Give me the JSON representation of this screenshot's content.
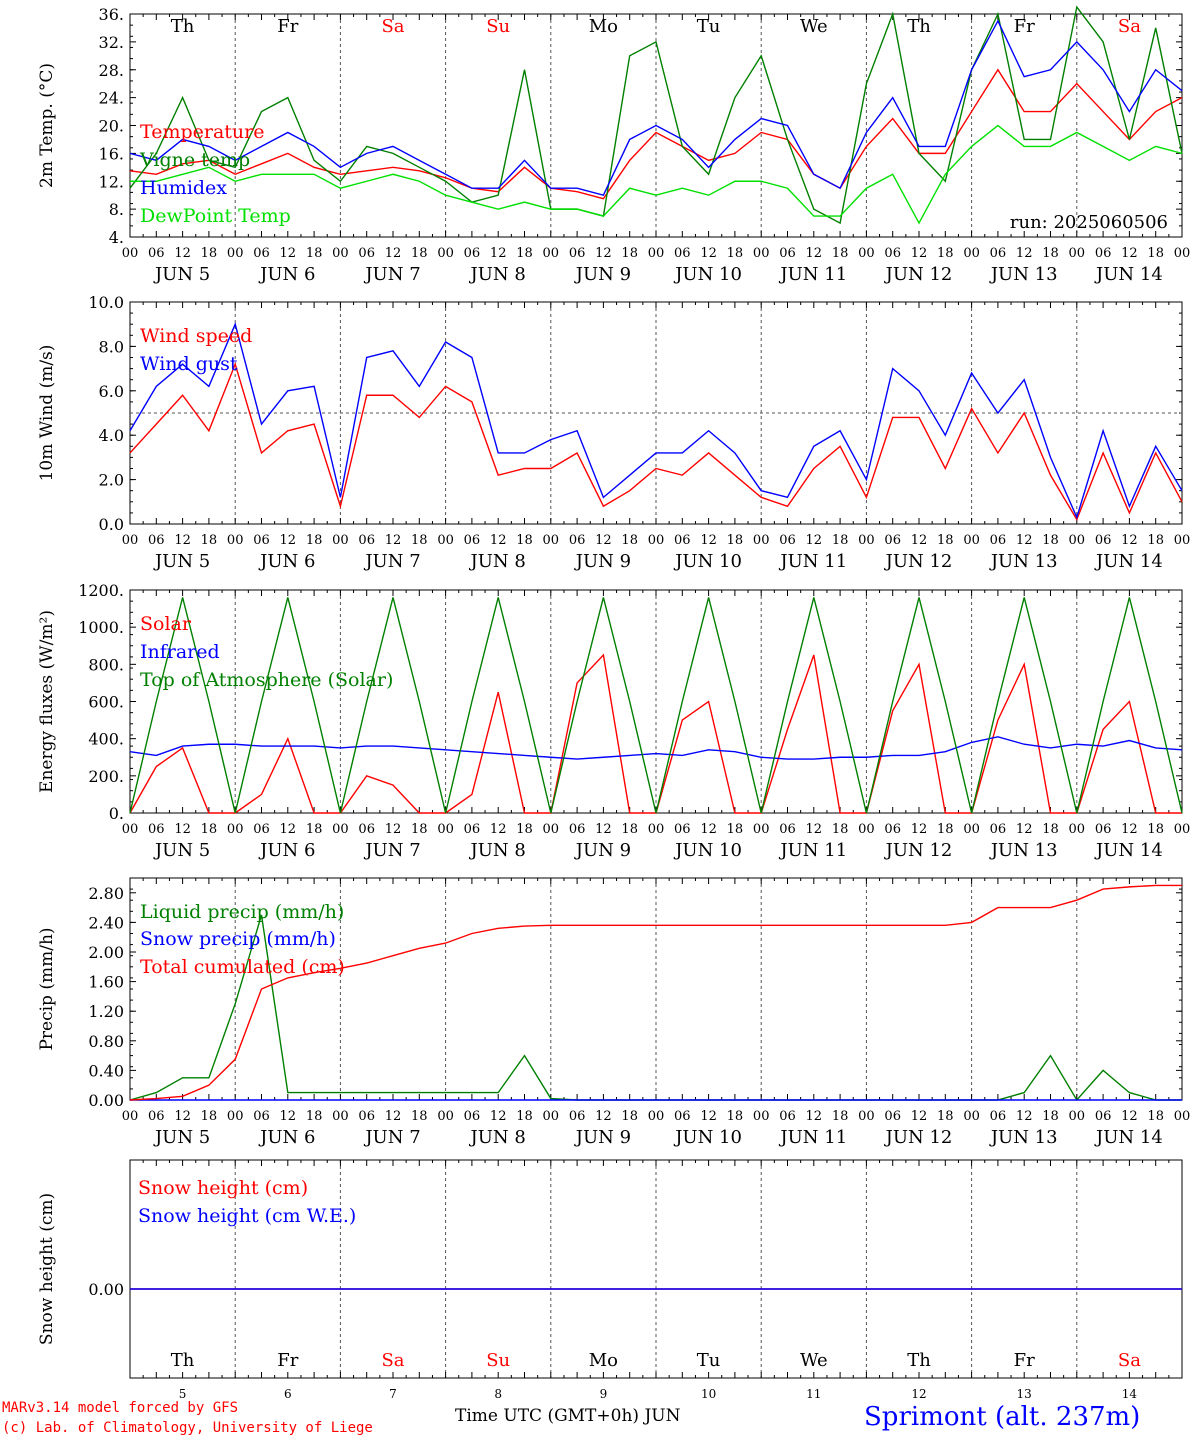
{
  "meta": {
    "run": "run: 2025060506",
    "footer_model": "MARv3.14 model forced by GFS",
    "footer_lab": "(c) Lab. of Climatology, University of Liege",
    "footer_axis": "Time UTC (GMT+0h) JUN",
    "footer_station": "Sprimont (alt. 237m)"
  },
  "colors": {
    "red": "#ff0000",
    "green": "#008000",
    "blue": "#0000ff",
    "lime": "#00e000",
    "grid": "#555555"
  },
  "chart_data": [
    {
      "type": "line",
      "ylabel": "2m Temp. (°C)",
      "ylim": [
        4,
        36
      ],
      "yticks": [
        "4.",
        "8.",
        "12.",
        "16.",
        "20.",
        "24.",
        "28.",
        "32.",
        "36."
      ],
      "day_names": [
        "Th",
        "Fr",
        "Sa",
        "Su",
        "Mo",
        "Tu",
        "We",
        "Th",
        "Fr",
        "Sa"
      ],
      "day_colors": [
        "#000000",
        "#000000",
        "#ff0000",
        "#ff0000",
        "#000000",
        "#000000",
        "#000000",
        "#000000",
        "#000000",
        "#ff0000"
      ],
      "x_hours": [
        0,
        6,
        12,
        18,
        24,
        30,
        36,
        42,
        48,
        54,
        60,
        66,
        72,
        78,
        84,
        90,
        96,
        102,
        108,
        114,
        120,
        126,
        132,
        138,
        144,
        150,
        156,
        162,
        168,
        174,
        180,
        186,
        192,
        198,
        204,
        210,
        216,
        222,
        228,
        234,
        240
      ],
      "series": [
        {
          "name": "Temperature",
          "color": "#ff0000",
          "values": [
            13.5,
            13,
            14.5,
            15,
            13,
            14.5,
            16,
            14,
            13,
            13.5,
            14,
            13.5,
            12.5,
            11,
            10.5,
            14,
            11,
            10.5,
            9.5,
            15,
            19,
            17,
            15,
            16,
            19,
            18,
            13,
            11,
            17,
            21,
            16,
            16,
            22,
            28,
            22,
            22,
            26,
            22,
            18,
            22,
            24
          ]
        },
        {
          "name": "Vigne temp",
          "color": "#008000",
          "values": [
            11,
            16,
            24,
            15,
            14,
            22,
            24,
            15,
            12,
            17,
            16,
            14,
            12,
            9,
            10,
            28,
            8,
            8,
            7,
            30,
            32,
            17,
            13,
            24,
            30,
            18,
            8,
            6,
            26,
            36,
            16,
            12,
            28,
            36,
            18,
            18,
            37,
            32,
            18,
            34,
            16
          ]
        },
        {
          "name": "Humidex",
          "color": "#0000ff",
          "values": [
            16,
            15,
            18,
            17,
            15,
            17,
            19,
            17,
            14,
            16,
            17,
            15,
            13,
            11,
            11,
            15,
            11,
            11,
            10,
            18,
            20,
            18,
            14,
            18,
            21,
            20,
            13,
            11,
            19,
            24,
            17,
            17,
            28,
            35,
            27,
            28,
            32,
            28,
            22,
            28,
            25
          ]
        },
        {
          "name": "DewPoint Temp",
          "color": "#00e000",
          "values": [
            12,
            12,
            13,
            14,
            12,
            13,
            13,
            13,
            11,
            12,
            13,
            12,
            10,
            9,
            8,
            9,
            8,
            8,
            7,
            11,
            10,
            11,
            10,
            12,
            12,
            11,
            7,
            7,
            11,
            13,
            6,
            13,
            17,
            20,
            17,
            17,
            19,
            17,
            15,
            17,
            16
          ]
        }
      ]
    },
    {
      "type": "line",
      "ylabel": "10m Wind (m/s)",
      "ylim": [
        0,
        10
      ],
      "yticks": [
        "0.0",
        "2.0",
        "4.0",
        "6.0",
        "8.0",
        "10.0"
      ],
      "threshold": 5,
      "x_hours": [
        0,
        6,
        12,
        18,
        24,
        30,
        36,
        42,
        48,
        54,
        60,
        66,
        72,
        78,
        84,
        90,
        96,
        102,
        108,
        114,
        120,
        126,
        132,
        138,
        144,
        150,
        156,
        162,
        168,
        174,
        180,
        186,
        192,
        198,
        204,
        210,
        216,
        222,
        228,
        234,
        240
      ],
      "series": [
        {
          "name": "Wind speed",
          "color": "#ff0000",
          "values": [
            3.2,
            4.5,
            5.8,
            4.2,
            7.2,
            3.2,
            4.2,
            4.5,
            0.8,
            5.8,
            5.8,
            4.8,
            6.2,
            5.5,
            2.2,
            2.5,
            2.5,
            3.2,
            0.8,
            1.5,
            2.5,
            2.2,
            3.2,
            2.2,
            1.2,
            0.8,
            2.5,
            3.5,
            1.2,
            4.8,
            4.8,
            2.5,
            5.2,
            3.2,
            5.0,
            2.2,
            0.2,
            3.2,
            0.5,
            3.2,
            1.0
          ]
        },
        {
          "name": "Wind gust",
          "color": "#0000ff",
          "values": [
            4.2,
            6.2,
            7.2,
            6.2,
            9.0,
            4.5,
            6.0,
            6.2,
            1.2,
            7.5,
            7.8,
            6.2,
            8.2,
            7.5,
            3.2,
            3.2,
            3.8,
            4.2,
            1.2,
            2.2,
            3.2,
            3.2,
            4.2,
            3.2,
            1.5,
            1.2,
            3.5,
            4.2,
            2.0,
            7.0,
            6.0,
            4.0,
            6.8,
            5.0,
            6.5,
            3.0,
            0.3,
            4.2,
            0.8,
            3.5,
            1.5
          ]
        }
      ]
    },
    {
      "type": "line",
      "ylabel": "Energy fluxes (W/m²)",
      "ylim": [
        0,
        1200
      ],
      "yticks": [
        "0.",
        "200.",
        "400.",
        "600.",
        "800.",
        "1000.",
        "1200."
      ],
      "x_hours": [
        0,
        6,
        12,
        18,
        24,
        30,
        36,
        42,
        48,
        54,
        60,
        66,
        72,
        78,
        84,
        90,
        96,
        102,
        108,
        114,
        120,
        126,
        132,
        138,
        144,
        150,
        156,
        162,
        168,
        174,
        180,
        186,
        192,
        198,
        204,
        210,
        216,
        222,
        228,
        234,
        240
      ],
      "series": [
        {
          "name": "Solar",
          "color": "#ff0000",
          "values": [
            0,
            250,
            350,
            0,
            0,
            100,
            400,
            0,
            0,
            200,
            150,
            0,
            0,
            100,
            650,
            0,
            0,
            700,
            850,
            0,
            0,
            500,
            600,
            0,
            0,
            450,
            850,
            0,
            0,
            550,
            800,
            0,
            0,
            500,
            800,
            0,
            0,
            450,
            600,
            0,
            0
          ]
        },
        {
          "name": "Infrared",
          "color": "#0000ff",
          "values": [
            330,
            310,
            360,
            370,
            370,
            360,
            360,
            360,
            350,
            360,
            360,
            350,
            340,
            330,
            320,
            310,
            300,
            290,
            300,
            310,
            320,
            310,
            340,
            330,
            300,
            290,
            290,
            300,
            300,
            310,
            310,
            330,
            380,
            410,
            370,
            350,
            370,
            360,
            390,
            350,
            340
          ]
        },
        {
          "name": "Top of Atmosphere (Solar)",
          "color": "#008000",
          "values": [
            0,
            600,
            1160,
            600,
            0,
            600,
            1160,
            600,
            0,
            600,
            1160,
            600,
            0,
            600,
            1160,
            600,
            0,
            600,
            1160,
            600,
            0,
            600,
            1160,
            600,
            0,
            600,
            1160,
            600,
            0,
            600,
            1160,
            600,
            0,
            600,
            1160,
            600,
            0,
            600,
            1160,
            600,
            0
          ]
        }
      ]
    },
    {
      "type": "line",
      "ylabel": "Precip (mm/h)",
      "ylim": [
        0,
        3.0
      ],
      "yticks": [
        "0.00",
        "0.40",
        "0.80",
        "1.20",
        "1.60",
        "2.00",
        "2.40",
        "2.80"
      ],
      "x_hours": [
        0,
        6,
        12,
        18,
        24,
        30,
        36,
        42,
        48,
        54,
        60,
        66,
        72,
        78,
        84,
        90,
        96,
        102,
        108,
        114,
        120,
        126,
        132,
        138,
        144,
        150,
        156,
        162,
        168,
        174,
        180,
        186,
        192,
        198,
        204,
        210,
        216,
        222,
        228,
        234,
        240
      ],
      "series": [
        {
          "name": "Liquid precip (mm/h)",
          "color": "#008000",
          "values": [
            0,
            0.1,
            0.3,
            0.3,
            1.3,
            2.5,
            0.1,
            0.1,
            0.1,
            0.1,
            0.1,
            0.1,
            0.1,
            0.1,
            0.1,
            0.6,
            0.02,
            0,
            0,
            0,
            0,
            0,
            0,
            0,
            0,
            0,
            0,
            0,
            0,
            0,
            0,
            0,
            0,
            0,
            0.1,
            0.6,
            0,
            0.4,
            0.1,
            0,
            0
          ]
        },
        {
          "name": "Snow precip (mm/h)",
          "color": "#0000ff",
          "values": [
            0,
            0,
            0,
            0,
            0,
            0,
            0,
            0,
            0,
            0,
            0,
            0,
            0,
            0,
            0,
            0,
            0,
            0,
            0,
            0,
            0,
            0,
            0,
            0,
            0,
            0,
            0,
            0,
            0,
            0,
            0,
            0,
            0,
            0,
            0,
            0,
            0,
            0,
            0,
            0,
            0
          ]
        },
        {
          "name": "Total cumulated (cm)",
          "color": "#ff0000",
          "values": [
            0,
            0.02,
            0.05,
            0.2,
            0.55,
            1.5,
            1.65,
            1.72,
            1.78,
            1.85,
            1.95,
            2.05,
            2.12,
            2.25,
            2.32,
            2.35,
            2.36,
            2.36,
            2.36,
            2.36,
            2.36,
            2.36,
            2.36,
            2.36,
            2.36,
            2.36,
            2.36,
            2.36,
            2.36,
            2.36,
            2.36,
            2.36,
            2.4,
            2.6,
            2.6,
            2.6,
            2.7,
            2.85,
            2.88,
            2.9,
            2.9
          ]
        }
      ]
    },
    {
      "type": "line",
      "ylabel": "Snow height (cm)",
      "yticks": [
        "0.00"
      ],
      "day_names": [
        "Th",
        "Fr",
        "Sa",
        "Su",
        "Mo",
        "Tu",
        "We",
        "Th",
        "Fr",
        "Sa"
      ],
      "day_numbers": [
        "5",
        "6",
        "7",
        "8",
        "9",
        "10",
        "11",
        "12",
        "13",
        "14"
      ],
      "x_hours": [
        0,
        240
      ],
      "series": [
        {
          "name": "Snow height (cm)",
          "color": "#ff0000",
          "values": [
            0,
            0
          ]
        },
        {
          "name": "Snow height (cm W.E.)",
          "color": "#0000ff",
          "values": [
            0,
            0
          ]
        }
      ]
    }
  ],
  "xaxis": {
    "hour_labels": [
      "00",
      "06",
      "12",
      "18"
    ],
    "end_label": "00",
    "date_labels": [
      "JUN  5",
      "JUN  6",
      "JUN  7",
      "JUN  8",
      "JUN  9",
      "JUN 10",
      "JUN 11",
      "JUN 12",
      "JUN 13",
      "JUN 14"
    ]
  }
}
